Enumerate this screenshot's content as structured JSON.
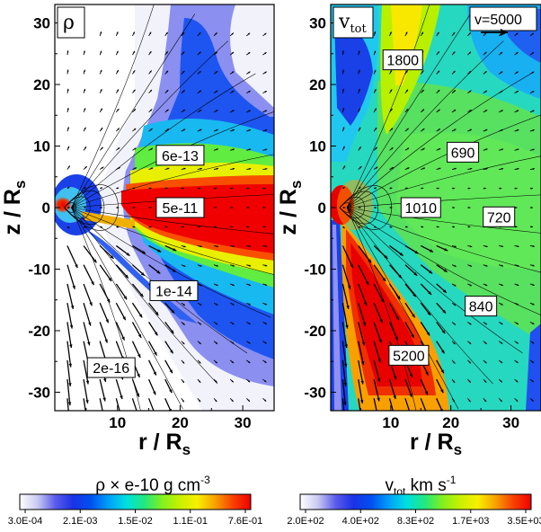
{
  "chart_data": [
    {
      "type": "heatmap",
      "panel_label": "ρ",
      "xlabel": "r / R",
      "xlabel_sub": "s",
      "ylabel": "z / R",
      "ylabel_sub": "s",
      "xlim": [
        0,
        35
      ],
      "ylim": [
        -33,
        33
      ],
      "xticks": [
        10,
        20,
        30
      ],
      "yticks": [
        -30,
        -20,
        -10,
        0,
        10,
        20,
        30
      ],
      "contour_labels": [
        {
          "text": "6e-13",
          "x": 20,
          "y": 8.5
        },
        {
          "text": "5e-11",
          "x": 20,
          "y": 0
        },
        {
          "text": "1e-14",
          "x": 19,
          "y": -13.5
        },
        {
          "text": "2e-16",
          "x": 9,
          "y": -26
        }
      ],
      "colorbar": {
        "title_prefix": "ρ × e-10 g cm",
        "title_sup": "-3",
        "scale": "log",
        "tick_labels": [
          "3.0E-04",
          "2.1E-03",
          "1.5E-02",
          "1.1E-01",
          "7.6E-01"
        ]
      }
    },
    {
      "type": "heatmap",
      "panel_label": "v",
      "panel_label_sub": "tot",
      "xlabel": "r / R",
      "xlabel_sub": "s",
      "ylabel": "z / R",
      "ylabel_sub": "s",
      "xlim": [
        0,
        35
      ],
      "ylim": [
        -33,
        33
      ],
      "xticks": [
        10,
        20,
        30
      ],
      "yticks": [
        -30,
        -20,
        -10,
        0,
        10,
        20,
        30
      ],
      "reference_vector": "v=5000",
      "contour_labels": [
        {
          "text": "1800",
          "x": 12,
          "y": 24
        },
        {
          "text": "690",
          "x": 22,
          "y": 9
        },
        {
          "text": "1010",
          "x": 15,
          "y": 0
        },
        {
          "text": "720",
          "x": 28,
          "y": -1.5
        },
        {
          "text": "840",
          "x": 25,
          "y": -16
        },
        {
          "text": "5200",
          "x": 13,
          "y": -24
        }
      ],
      "colorbar": {
        "title_prefix": "v",
        "title_sub": "tot",
        "title_suffix": " km s",
        "title_sup": "-1",
        "scale": "log",
        "tick_labels": [
          "2.0E+02",
          "4.0E+02",
          "8.3E+02",
          "1.7E+03",
          "3.5E+03"
        ]
      }
    }
  ],
  "colors": {
    "colormap": [
      "#ffffff",
      "#c9c9f2",
      "#5b5bec",
      "#1a32e6",
      "#0050f0",
      "#00a0f8",
      "#00e0e0",
      "#20e880",
      "#80f020",
      "#c8f000",
      "#f8f000",
      "#f8a000",
      "#f84000",
      "#f00000"
    ],
    "vector": "#000000",
    "streamline": "#000000",
    "frame": "#000000"
  }
}
